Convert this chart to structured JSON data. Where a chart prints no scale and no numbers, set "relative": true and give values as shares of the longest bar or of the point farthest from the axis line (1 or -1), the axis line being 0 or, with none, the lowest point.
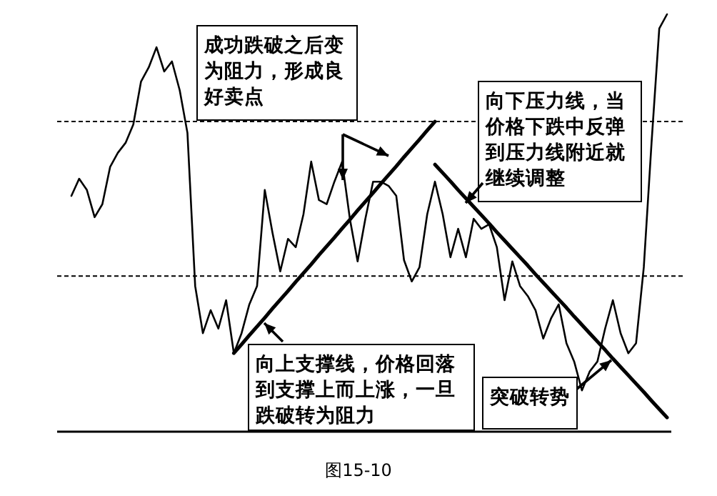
{
  "chart_data": {
    "type": "line",
    "relative": true,
    "categories": [
      null,
      null,
      null,
      null,
      null,
      null,
      null,
      null,
      null,
      null,
      null,
      null,
      null,
      null,
      null,
      null,
      null,
      null,
      null,
      null,
      null,
      null,
      null,
      null,
      null,
      null,
      null,
      null,
      null,
      null,
      null,
      null,
      null,
      null,
      null,
      null,
      null,
      null,
      null,
      null,
      null,
      null,
      null,
      null,
      null,
      null,
      null,
      null,
      null,
      null,
      null,
      null,
      null,
      null,
      null,
      null,
      null,
      null,
      null,
      null,
      null,
      null,
      null,
      null,
      null,
      null,
      null,
      null,
      null,
      null,
      null,
      null,
      null,
      null,
      null,
      null,
      null,
      null
    ],
    "series": [
      {
        "color": "#000000",
        "values": [
          0.565,
          0.606,
          0.579,
          0.514,
          0.545,
          0.634,
          0.668,
          0.692,
          0.736,
          0.839,
          0.873,
          0.921,
          0.863,
          0.887,
          0.818,
          0.716,
          0.349,
          0.236,
          0.291,
          0.247,
          0.315,
          0.188,
          0.236,
          0.305,
          0.349,
          0.579,
          0.476,
          0.384,
          0.462,
          0.442,
          0.521,
          0.647,
          0.555,
          0.545,
          0.599,
          0.647,
          0.51,
          0.408,
          0.51,
          0.599,
          0.599,
          0.589,
          0.565,
          0.411,
          0.36,
          0.394,
          0.521,
          0.599,
          0.521,
          0.418,
          0.486,
          0.418,
          0.51,
          0.486,
          0.497,
          0.442,
          0.315,
          0.408,
          0.349,
          0.325,
          0.291,
          0.223,
          0.271,
          0.305,
          0.212,
          0.168,
          0.099,
          0.144,
          0.168,
          0.247,
          0.315,
          0.236,
          0.188,
          0.212,
          0.394,
          0.692,
          0.966,
          1
        ]
      },
      {
        "color": "#000000",
        "values": [
          null,
          null,
          null,
          null,
          null,
          null,
          null,
          null,
          null,
          null,
          null,
          null,
          null,
          null,
          null,
          null,
          null,
          null,
          null,
          null,
          null,
          0.188,
          0.209,
          0.231,
          0.252,
          0.273,
          0.295,
          0.316,
          0.337,
          0.359,
          0.38,
          0.401,
          0.423,
          0.444,
          0.465,
          0.487,
          0.508,
          0.53,
          0.551,
          0.572,
          0.594,
          0.615,
          0.636,
          0.658,
          0.679,
          0.7,
          0.722,
          0.743,
          null,
          null,
          null,
          null,
          null,
          null,
          null,
          null,
          null,
          null,
          null,
          null,
          null,
          null,
          null,
          null,
          null,
          null,
          null,
          null,
          null,
          null,
          null,
          null,
          null,
          null,
          null,
          null,
          null,
          null
        ]
      },
      {
        "color": "#000000",
        "values": [
          null,
          null,
          null,
          null,
          null,
          null,
          null,
          null,
          null,
          null,
          null,
          null,
          null,
          null,
          null,
          null,
          null,
          null,
          null,
          null,
          null,
          null,
          null,
          null,
          null,
          null,
          null,
          null,
          null,
          null,
          null,
          null,
          null,
          null,
          null,
          null,
          null,
          null,
          null,
          null,
          null,
          null,
          null,
          null,
          null,
          null,
          null,
          0.64,
          0.62,
          0.6,
          0.579,
          0.559,
          0.539,
          0.519,
          0.499,
          0.478,
          0.458,
          0.438,
          0.418,
          0.398,
          0.377,
          0.357,
          0.337,
          0.317,
          0.297,
          0.276,
          0.256,
          0.236,
          0.216,
          0.196,
          0.175,
          0.155,
          0.135,
          0.115,
          0.095,
          0.074,
          0.054,
          0.034
        ]
      }
    ],
    "ref_lines": [
      {
        "axis": "y",
        "value": 0.743,
        "line_style": "dashed",
        "color": "#000000"
      },
      {
        "axis": "y",
        "value": 0.373,
        "line_style": "dashed",
        "color": "#000000"
      }
    ],
    "annotations": [
      "成功跌破之后变为阻力，形成良好卖点",
      "向下压力线，当价格下跌中反弹到压力线附近就继续调整",
      "向上支撑线，价格回落到支撑上而上涨，一旦跌破转为阻力",
      "突破转势",
      "图15-10"
    ]
  }
}
